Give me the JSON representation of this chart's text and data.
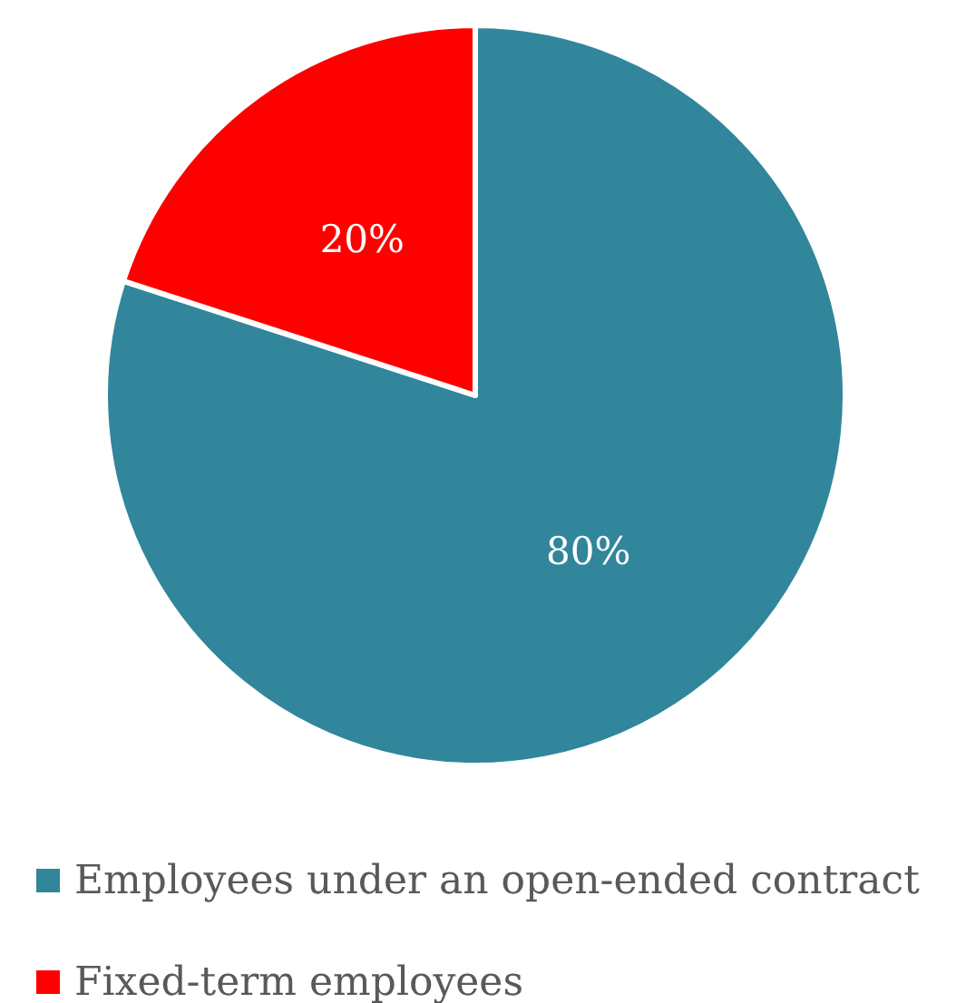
{
  "chart_data": {
    "type": "pie",
    "categories": [
      "Employees under an open-ended contract",
      "Fixed-term employees"
    ],
    "values": [
      80,
      20
    ],
    "colors": [
      "#31869b",
      "#ff0000"
    ],
    "value_labels": [
      "80%",
      "20%"
    ],
    "legend": "bottom"
  }
}
